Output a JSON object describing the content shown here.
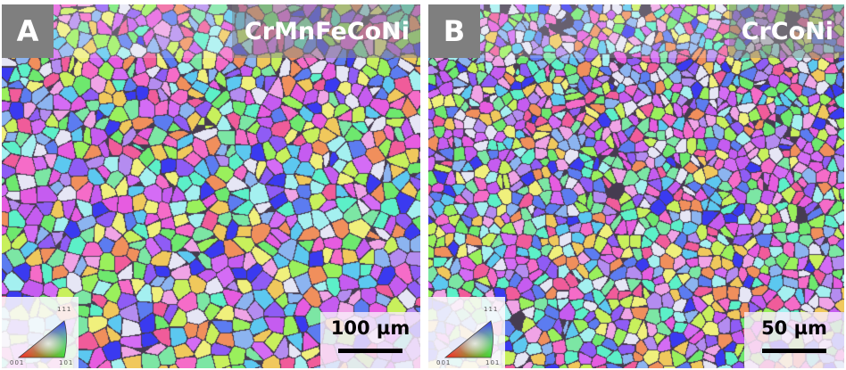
{
  "figure": {
    "panels": [
      {
        "id": "A",
        "label": "A",
        "alloy": "CrMnFeCoNi",
        "scale_bar_label": "100 µm",
        "ipf_key": {
          "corner_top": "111",
          "corner_left": "001",
          "corner_right": "101"
        }
      },
      {
        "id": "B",
        "label": "B",
        "alloy": "CrCoNi",
        "scale_bar_label": "50 µm",
        "ipf_key": {
          "corner_top": "111",
          "corner_left": "001",
          "corner_right": "101"
        }
      }
    ],
    "colors": {
      "label_box": "#7f7f7f",
      "title_text": "#ffffff",
      "scale_bar": "#000000",
      "ipf_001": "#ff0000",
      "ipf_101": "#00ff00",
      "ipf_111": "#0000ff"
    }
  }
}
